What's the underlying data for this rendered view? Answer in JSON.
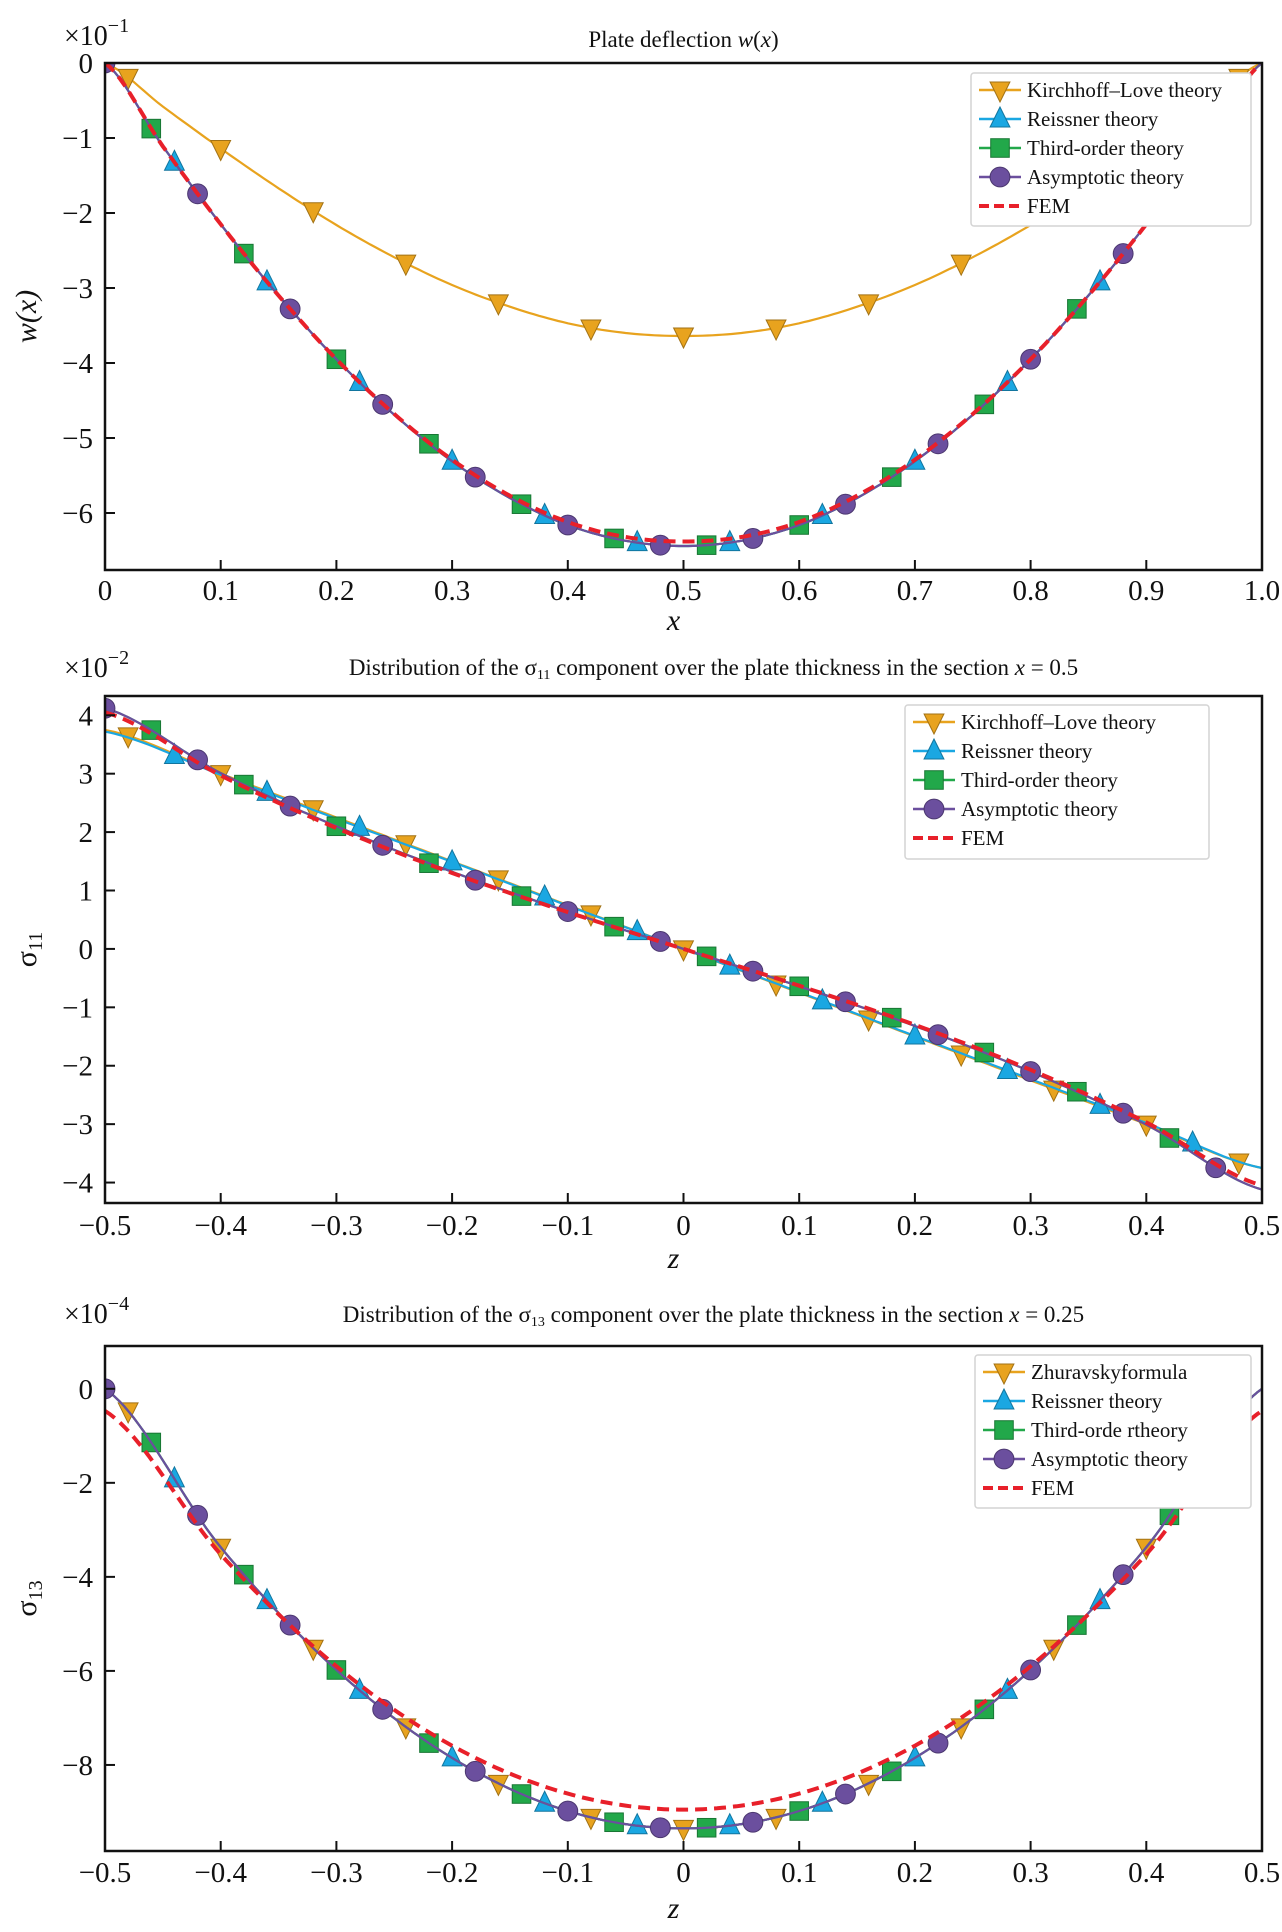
{
  "chart_data": [
    {
      "type": "line",
      "title_parts": [
        {
          "text": "Plate deflection ",
          "style": "normal"
        },
        {
          "text": "w",
          "style": "italic"
        },
        {
          "text": "(",
          "style": "normal"
        },
        {
          "text": "x",
          "style": "italic"
        },
        {
          "text": ")",
          "style": "normal"
        }
      ],
      "multiplier": "×10",
      "exponent": "−1",
      "xlabel": "x",
      "ylabel_main": "w(x)",
      "ylabel_sub": "",
      "xlim": [
        0,
        1
      ],
      "ylim": [
        -6.76,
        0
      ],
      "xticks": [
        0,
        0.1,
        0.2,
        0.3,
        0.4,
        0.5,
        0.6,
        0.7,
        0.8,
        0.9,
        1.0
      ],
      "xtick_labels": [
        "0",
        "0.1",
        "0.2",
        "0.3",
        "0.4",
        "0.5",
        "0.6",
        "0.7",
        "0.8",
        "0.9",
        "1.0"
      ],
      "yticks": [
        0,
        -1,
        -2,
        -3,
        -4,
        -5,
        -6
      ],
      "ytick_labels": [
        "0",
        "−1",
        "−2",
        "−3",
        "−4",
        "−5",
        "−6"
      ],
      "grid": false,
      "legend_position": "top-right",
      "series": [
        {
          "name": "Kirchhoff–Love theory",
          "color": "#E8A31E",
          "marker": "triangle-down",
          "dashed": false,
          "x": [
            0,
            0.05,
            0.1,
            0.15,
            0.2,
            0.25,
            0.3,
            0.35,
            0.4,
            0.45,
            0.5,
            0.55,
            0.6,
            0.65,
            0.7,
            0.75,
            0.8,
            0.85,
            0.9,
            0.95,
            1.0
          ],
          "y": [
            0,
            -0.58,
            -1.14,
            -1.67,
            -2.16,
            -2.59,
            -2.96,
            -3.25,
            -3.47,
            -3.6,
            -3.64,
            -3.6,
            -3.47,
            -3.25,
            -2.96,
            -2.59,
            -2.16,
            -1.67,
            -1.14,
            -0.58,
            0
          ],
          "marker_x": [
            0.02,
            0.1,
            0.18,
            0.26,
            0.34,
            0.42,
            0.5,
            0.58,
            0.66,
            0.74,
            0.82,
            0.9,
            0.98
          ]
        },
        {
          "name": "Reissner theory",
          "color": "#1AA7E2",
          "marker": "triangle-up",
          "dashed": false,
          "x": [
            0,
            0.05,
            0.1,
            0.15,
            0.2,
            0.25,
            0.3,
            0.35,
            0.4,
            0.45,
            0.5,
            0.55,
            0.6,
            0.65,
            0.7,
            0.75,
            0.8,
            0.85,
            0.9,
            0.95,
            1.0
          ],
          "y": [
            0,
            -1.11,
            -2.15,
            -3.1,
            -3.95,
            -4.69,
            -5.31,
            -5.8,
            -6.16,
            -6.37,
            -6.44,
            -6.37,
            -6.16,
            -5.8,
            -5.31,
            -4.69,
            -3.95,
            -3.1,
            -2.15,
            -1.11,
            0
          ],
          "marker_x": [
            0.06,
            0.14,
            0.22,
            0.3,
            0.38,
            0.46,
            0.54,
            0.62,
            0.7,
            0.78,
            0.86
          ]
        },
        {
          "name": "Third-order theory",
          "color": "#22A84A",
          "marker": "square",
          "dashed": false,
          "x": [
            0,
            0.05,
            0.1,
            0.15,
            0.2,
            0.25,
            0.3,
            0.35,
            0.4,
            0.45,
            0.5,
            0.55,
            0.6,
            0.65,
            0.7,
            0.75,
            0.8,
            0.85,
            0.9,
            0.95,
            1.0
          ],
          "y": [
            0,
            -1.11,
            -2.15,
            -3.1,
            -3.95,
            -4.69,
            -5.31,
            -5.8,
            -6.16,
            -6.37,
            -6.44,
            -6.37,
            -6.16,
            -5.8,
            -5.31,
            -4.69,
            -3.95,
            -3.1,
            -2.15,
            -1.11,
            0
          ],
          "marker_x": [
            0.04,
            0.12,
            0.2,
            0.28,
            0.36,
            0.44,
            0.52,
            0.6,
            0.68,
            0.76,
            0.84
          ]
        },
        {
          "name": "Asymptotic theory",
          "color": "#6B4F9E",
          "marker": "circle",
          "dashed": false,
          "x": [
            0,
            0.05,
            0.1,
            0.15,
            0.2,
            0.25,
            0.3,
            0.35,
            0.4,
            0.45,
            0.5,
            0.55,
            0.6,
            0.65,
            0.7,
            0.75,
            0.8,
            0.85,
            0.9,
            0.95,
            1.0
          ],
          "y": [
            0,
            -1.11,
            -2.15,
            -3.1,
            -3.95,
            -4.69,
            -5.31,
            -5.8,
            -6.16,
            -6.37,
            -6.44,
            -6.37,
            -6.16,
            -5.8,
            -5.31,
            -4.69,
            -3.95,
            -3.1,
            -2.15,
            -1.11,
            0
          ],
          "marker_x": [
            0,
            0.08,
            0.16,
            0.24,
            0.32,
            0.4,
            0.48,
            0.56,
            0.64,
            0.72,
            0.8,
            0.88
          ]
        },
        {
          "name": "FEM",
          "color": "#E8202A",
          "marker": "none",
          "dashed": true,
          "x": [
            0,
            0.05,
            0.1,
            0.15,
            0.2,
            0.25,
            0.3,
            0.35,
            0.4,
            0.45,
            0.5,
            0.55,
            0.6,
            0.65,
            0.7,
            0.75,
            0.8,
            0.85,
            0.9,
            0.95,
            1.0
          ],
          "y": [
            0,
            -1.11,
            -2.15,
            -3.1,
            -3.95,
            -4.68,
            -5.29,
            -5.77,
            -6.12,
            -6.32,
            -6.38,
            -6.32,
            -6.12,
            -5.77,
            -5.29,
            -4.68,
            -3.95,
            -3.1,
            -2.15,
            -1.11,
            0
          ],
          "marker_x": []
        }
      ]
    },
    {
      "type": "line",
      "title_parts": [
        {
          "text": "Distribution of the σ",
          "style": "normal"
        },
        {
          "text": "11",
          "style": "sub"
        },
        {
          "text": " component over the plate thickness in the section ",
          "style": "normal"
        },
        {
          "text": "x",
          "style": "italic"
        },
        {
          "text": " = 0.5",
          "style": "normal"
        }
      ],
      "multiplier": "×10",
      "exponent": "−2",
      "xlabel": "z",
      "ylabel_main": "σ",
      "ylabel_sub": "11",
      "xlim": [
        -0.5,
        0.5
      ],
      "ylim": [
        -4.35,
        4.33
      ],
      "xticks": [
        -0.5,
        -0.4,
        -0.3,
        -0.2,
        -0.1,
        0,
        0.1,
        0.2,
        0.3,
        0.4,
        0.5
      ],
      "xtick_labels": [
        "−0.5",
        "−0.4",
        "−0.3",
        "−0.2",
        "−0.1",
        "0",
        "0.1",
        "0.2",
        "0.3",
        "0.4",
        "0.5"
      ],
      "yticks": [
        4,
        3,
        2,
        1,
        0,
        -1,
        -2,
        -3,
        -4
      ],
      "ytick_labels": [
        "4",
        "3",
        "2",
        "1",
        "0",
        "−1",
        "−2",
        "−3",
        "−4"
      ],
      "grid": false,
      "legend_position": "top-right",
      "series": [
        {
          "name": "Kirchhoff–Love theory",
          "color": "#E8A31E",
          "marker": "triangle-down",
          "dashed": false,
          "x": [
            -0.5,
            -0.4,
            -0.3,
            -0.2,
            -0.1,
            0,
            0.1,
            0.2,
            0.3,
            0.4,
            0.5
          ],
          "y": [
            3.75,
            3.0,
            2.25,
            1.5,
            0.75,
            0,
            -0.75,
            -1.5,
            -2.25,
            -3.0,
            -3.75
          ],
          "marker_x": [
            -0.48,
            -0.4,
            -0.32,
            -0.24,
            -0.16,
            -0.08,
            0,
            0.08,
            0.16,
            0.24,
            0.32,
            0.4,
            0.48
          ]
        },
        {
          "name": "Reissner theory",
          "color": "#1AA7E2",
          "marker": "triangle-up",
          "dashed": false,
          "x": [
            -0.5,
            -0.4,
            -0.3,
            -0.2,
            -0.1,
            0,
            0.1,
            0.2,
            0.3,
            0.4,
            0.5
          ],
          "y": [
            3.72,
            2.98,
            2.23,
            1.49,
            0.74,
            0,
            -0.74,
            -1.49,
            -2.23,
            -2.98,
            -3.75
          ],
          "marker_x": [
            -0.44,
            -0.36,
            -0.28,
            -0.2,
            -0.12,
            -0.04,
            0.04,
            0.12,
            0.2,
            0.28,
            0.36,
            0.44
          ]
        },
        {
          "name": "Third-order theory",
          "color": "#22A84A",
          "marker": "square",
          "dashed": false,
          "x": [
            -0.5,
            -0.4,
            -0.3,
            -0.2,
            -0.1,
            0,
            0.1,
            0.2,
            0.3,
            0.4,
            0.5
          ],
          "y": [
            4.12,
            3.01,
            2.1,
            1.32,
            0.64,
            0,
            -0.64,
            -1.32,
            -2.1,
            -3.01,
            -4.12
          ],
          "marker_x": [
            -0.46,
            -0.38,
            -0.3,
            -0.22,
            -0.14,
            -0.06,
            0.02,
            0.1,
            0.18,
            0.26,
            0.34,
            0.42
          ]
        },
        {
          "name": "Asymptotic theory",
          "color": "#6B4F9E",
          "marker": "circle",
          "dashed": false,
          "x": [
            -0.5,
            -0.4,
            -0.3,
            -0.2,
            -0.1,
            0,
            0.1,
            0.2,
            0.3,
            0.4,
            0.5
          ],
          "y": [
            4.12,
            3.01,
            2.1,
            1.32,
            0.64,
            0,
            -0.64,
            -1.32,
            -2.1,
            -3.01,
            -4.12
          ],
          "marker_x": [
            -0.5,
            -0.42,
            -0.34,
            -0.26,
            -0.18,
            -0.1,
            -0.02,
            0.06,
            0.14,
            0.22,
            0.3,
            0.38,
            0.46
          ]
        },
        {
          "name": "FEM",
          "color": "#E8202A",
          "marker": "none",
          "dashed": true,
          "x": [
            -0.5,
            -0.4,
            -0.3,
            -0.2,
            -0.1,
            0,
            0.1,
            0.2,
            0.3,
            0.4,
            0.5
          ],
          "y": [
            4.05,
            2.97,
            2.07,
            1.3,
            0.63,
            0,
            -0.63,
            -1.3,
            -2.07,
            -2.97,
            -4.05
          ],
          "marker_x": []
        }
      ]
    },
    {
      "type": "line",
      "title_parts": [
        {
          "text": "Distribution of the σ",
          "style": "normal"
        },
        {
          "text": "13",
          "style": "sub"
        },
        {
          "text": " component over the plate thickness in the section ",
          "style": "normal"
        },
        {
          "text": "x",
          "style": "italic"
        },
        {
          "text": " = 0.25",
          "style": "normal"
        }
      ],
      "multiplier": "×10",
      "exponent": "−4",
      "xlabel": "z",
      "ylabel_main": "σ",
      "ylabel_sub": "13",
      "xlim": [
        -0.5,
        0.5
      ],
      "ylim": [
        -9.83,
        0.91
      ],
      "xticks": [
        -0.5,
        -0.4,
        -0.3,
        -0.2,
        -0.1,
        0,
        0.1,
        0.2,
        0.3,
        0.4,
        0.5
      ],
      "xtick_labels": [
        "−0.5",
        "−0.4",
        "−0.3",
        "−0.2",
        "−0.1",
        "0",
        "0.1",
        "0.2",
        "0.3",
        "0.4",
        "0.5"
      ],
      "yticks": [
        0,
        -2,
        -4,
        -6,
        -8
      ],
      "ytick_labels": [
        "0",
        "−2",
        "−4",
        "−6",
        "−8"
      ],
      "grid": false,
      "legend_position": "top-right",
      "series": [
        {
          "name": "Zhuravskyformula",
          "color": "#E8A31E",
          "marker": "triangle-down",
          "dashed": false,
          "x": [
            -0.5,
            -0.4,
            -0.3,
            -0.2,
            -0.1,
            0,
            0.1,
            0.2,
            0.3,
            0.4,
            0.5
          ],
          "y": [
            0,
            -3.37,
            -5.98,
            -7.85,
            -8.98,
            -9.35,
            -8.98,
            -7.85,
            -5.98,
            -3.37,
            0
          ],
          "marker_x": [
            -0.48,
            -0.4,
            -0.32,
            -0.24,
            -0.16,
            -0.08,
            0,
            0.08,
            0.16,
            0.24,
            0.32,
            0.4
          ]
        },
        {
          "name": "Reissner theory",
          "color": "#1AA7E2",
          "marker": "triangle-up",
          "dashed": false,
          "x": [
            -0.5,
            -0.4,
            -0.3,
            -0.2,
            -0.1,
            0,
            0.1,
            0.2,
            0.3,
            0.4,
            0.5
          ],
          "y": [
            0,
            -3.37,
            -5.98,
            -7.85,
            -8.98,
            -9.35,
            -8.98,
            -7.85,
            -5.98,
            -3.37,
            0
          ],
          "marker_x": [
            -0.44,
            -0.36,
            -0.28,
            -0.2,
            -0.12,
            -0.04,
            0.04,
            0.12,
            0.2,
            0.28,
            0.36
          ]
        },
        {
          "name": "Third-orde rtheory",
          "color": "#22A84A",
          "marker": "square",
          "dashed": false,
          "x": [
            -0.5,
            -0.4,
            -0.3,
            -0.2,
            -0.1,
            0,
            0.1,
            0.2,
            0.3,
            0.4,
            0.5
          ],
          "y": [
            0,
            -3.37,
            -5.98,
            -7.85,
            -8.98,
            -9.35,
            -8.98,
            -7.85,
            -5.98,
            -3.37,
            0
          ],
          "marker_x": [
            -0.46,
            -0.38,
            -0.3,
            -0.22,
            -0.14,
            -0.06,
            0.02,
            0.1,
            0.18,
            0.26,
            0.34,
            0.42
          ]
        },
        {
          "name": "Asymptotic theory",
          "color": "#6B4F9E",
          "marker": "circle",
          "dashed": false,
          "x": [
            -0.5,
            -0.4,
            -0.3,
            -0.2,
            -0.1,
            0,
            0.1,
            0.2,
            0.3,
            0.4,
            0.5
          ],
          "y": [
            0,
            -3.37,
            -5.98,
            -7.85,
            -8.98,
            -9.35,
            -8.98,
            -7.85,
            -5.98,
            -3.37,
            0
          ],
          "marker_x": [
            -0.5,
            -0.42,
            -0.34,
            -0.26,
            -0.18,
            -0.1,
            -0.02,
            0.06,
            0.14,
            0.22,
            0.3,
            0.38
          ]
        },
        {
          "name": "FEM",
          "color": "#E8202A",
          "marker": "none",
          "dashed": true,
          "x": [
            -0.5,
            -0.4,
            -0.3,
            -0.2,
            -0.1,
            0,
            0.1,
            0.2,
            0.3,
            0.4,
            0.5
          ],
          "y": [
            -0.47,
            -3.52,
            -5.9,
            -7.59,
            -8.61,
            -8.95,
            -8.61,
            -7.59,
            -5.9,
            -3.52,
            -0.47
          ],
          "marker_x": []
        }
      ]
    }
  ]
}
